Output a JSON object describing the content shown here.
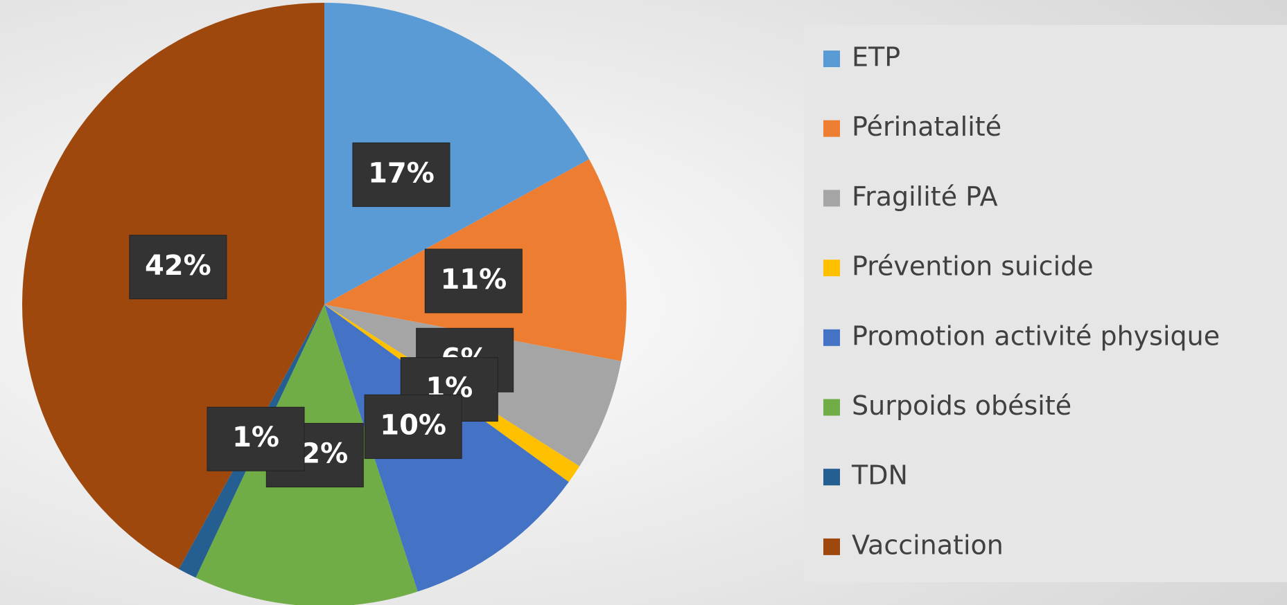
{
  "chart_data": {
    "type": "pie",
    "categories": [
      "ETP",
      "Périnatalité",
      "Fragilité PA",
      "Prévention suicide",
      "Promotion activité physique",
      "Surpoids obésité",
      "TDN",
      "Vaccination"
    ],
    "values": [
      17,
      11,
      6,
      1,
      10,
      12,
      1,
      42
    ],
    "value_labels": [
      "17%",
      "11%",
      "6%",
      "1%",
      "10%",
      "12%",
      "1%",
      "42%"
    ],
    "colors": [
      "#5b9bd5",
      "#ed7d31",
      "#a5a5a5",
      "#ffc000",
      "#4472c4",
      "#70ad47",
      "#255e91",
      "#9e480e"
    ],
    "legend": "right"
  }
}
